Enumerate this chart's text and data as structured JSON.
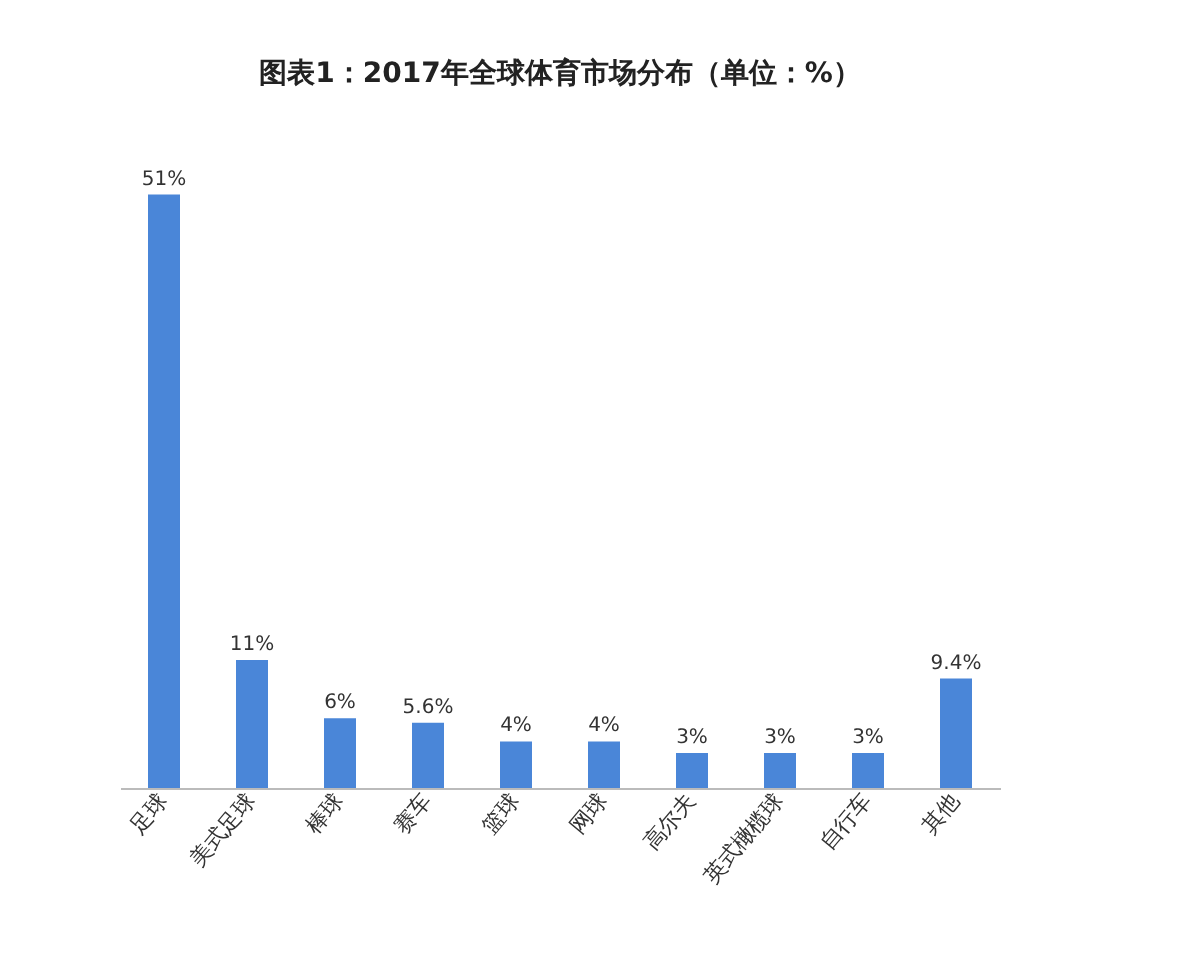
{
  "chart_data": {
    "type": "bar",
    "title": "图表1：2017年全球体育市场分布（单位：%）",
    "categories": [
      "足球",
      "美式足球",
      "棒球",
      "赛车",
      "篮球",
      "网球",
      "高尔夫",
      "英式橄榄球",
      "自行车",
      "其他"
    ],
    "values": [
      51,
      11,
      6,
      5.6,
      4,
      4,
      3,
      3,
      3,
      9.4
    ],
    "value_labels": [
      "51%",
      "11%",
      "6%",
      "5.6%",
      "4%",
      "4%",
      "3%",
      "3%",
      "3%",
      "9.4%"
    ],
    "color": "#4a86d8"
  }
}
